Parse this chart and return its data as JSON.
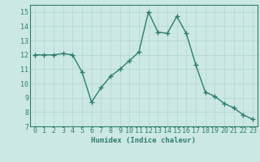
{
  "x": [
    0,
    1,
    2,
    3,
    4,
    5,
    6,
    7,
    8,
    9,
    10,
    11,
    12,
    13,
    14,
    15,
    16,
    17,
    18,
    19,
    20,
    21,
    22,
    23
  ],
  "y": [
    12.0,
    12.0,
    12.0,
    12.1,
    12.0,
    10.8,
    8.7,
    9.7,
    10.5,
    11.0,
    11.6,
    12.2,
    15.0,
    13.6,
    13.5,
    14.7,
    13.5,
    11.3,
    9.4,
    9.1,
    8.6,
    8.3,
    7.8,
    7.5
  ],
  "line_color": "#2e7d6e",
  "marker": "+",
  "marker_size": 4,
  "line_width": 1.0,
  "bg_color": "#cce8e4",
  "grid_color": "#b0d4d0",
  "xlabel": "Humidex (Indice chaleur)",
  "xlabel_fontsize": 6.5,
  "tick_fontsize": 6,
  "ylim": [
    7,
    15.5
  ],
  "yticks": [
    7,
    8,
    9,
    10,
    11,
    12,
    13,
    14,
    15
  ],
  "xticks": [
    0,
    1,
    2,
    3,
    4,
    5,
    6,
    7,
    8,
    9,
    10,
    11,
    12,
    13,
    14,
    15,
    16,
    17,
    18,
    19,
    20,
    21,
    22,
    23
  ],
  "tick_color": "#2e7d6e",
  "label_color": "#2e7d6e",
  "spine_color": "#2e7d6e"
}
